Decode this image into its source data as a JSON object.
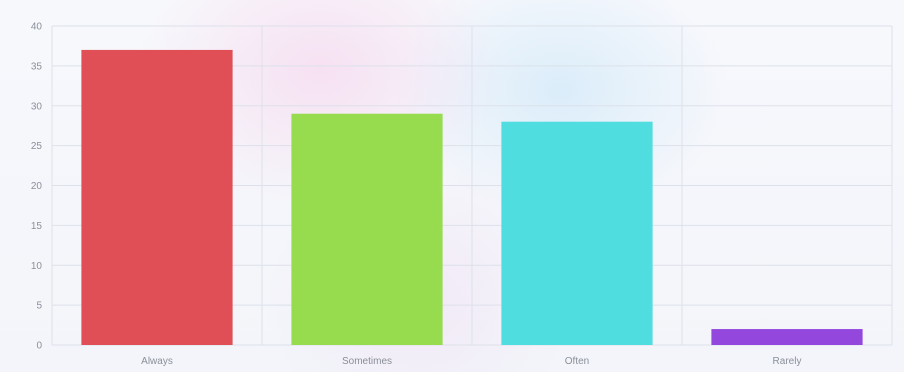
{
  "chart_data": {
    "type": "bar",
    "categories": [
      "Always",
      "Sometimes",
      "Often",
      "Rarely"
    ],
    "values": [
      37,
      29,
      28,
      2
    ],
    "colors": [
      "#df4f55",
      "#97db4f",
      "#4fdde0",
      "#9347dd"
    ],
    "ylim": [
      0,
      40
    ],
    "yticks": [
      0,
      5,
      10,
      15,
      20,
      25,
      30,
      35,
      40
    ],
    "grid": true,
    "title": "",
    "xlabel": "",
    "ylabel": ""
  }
}
